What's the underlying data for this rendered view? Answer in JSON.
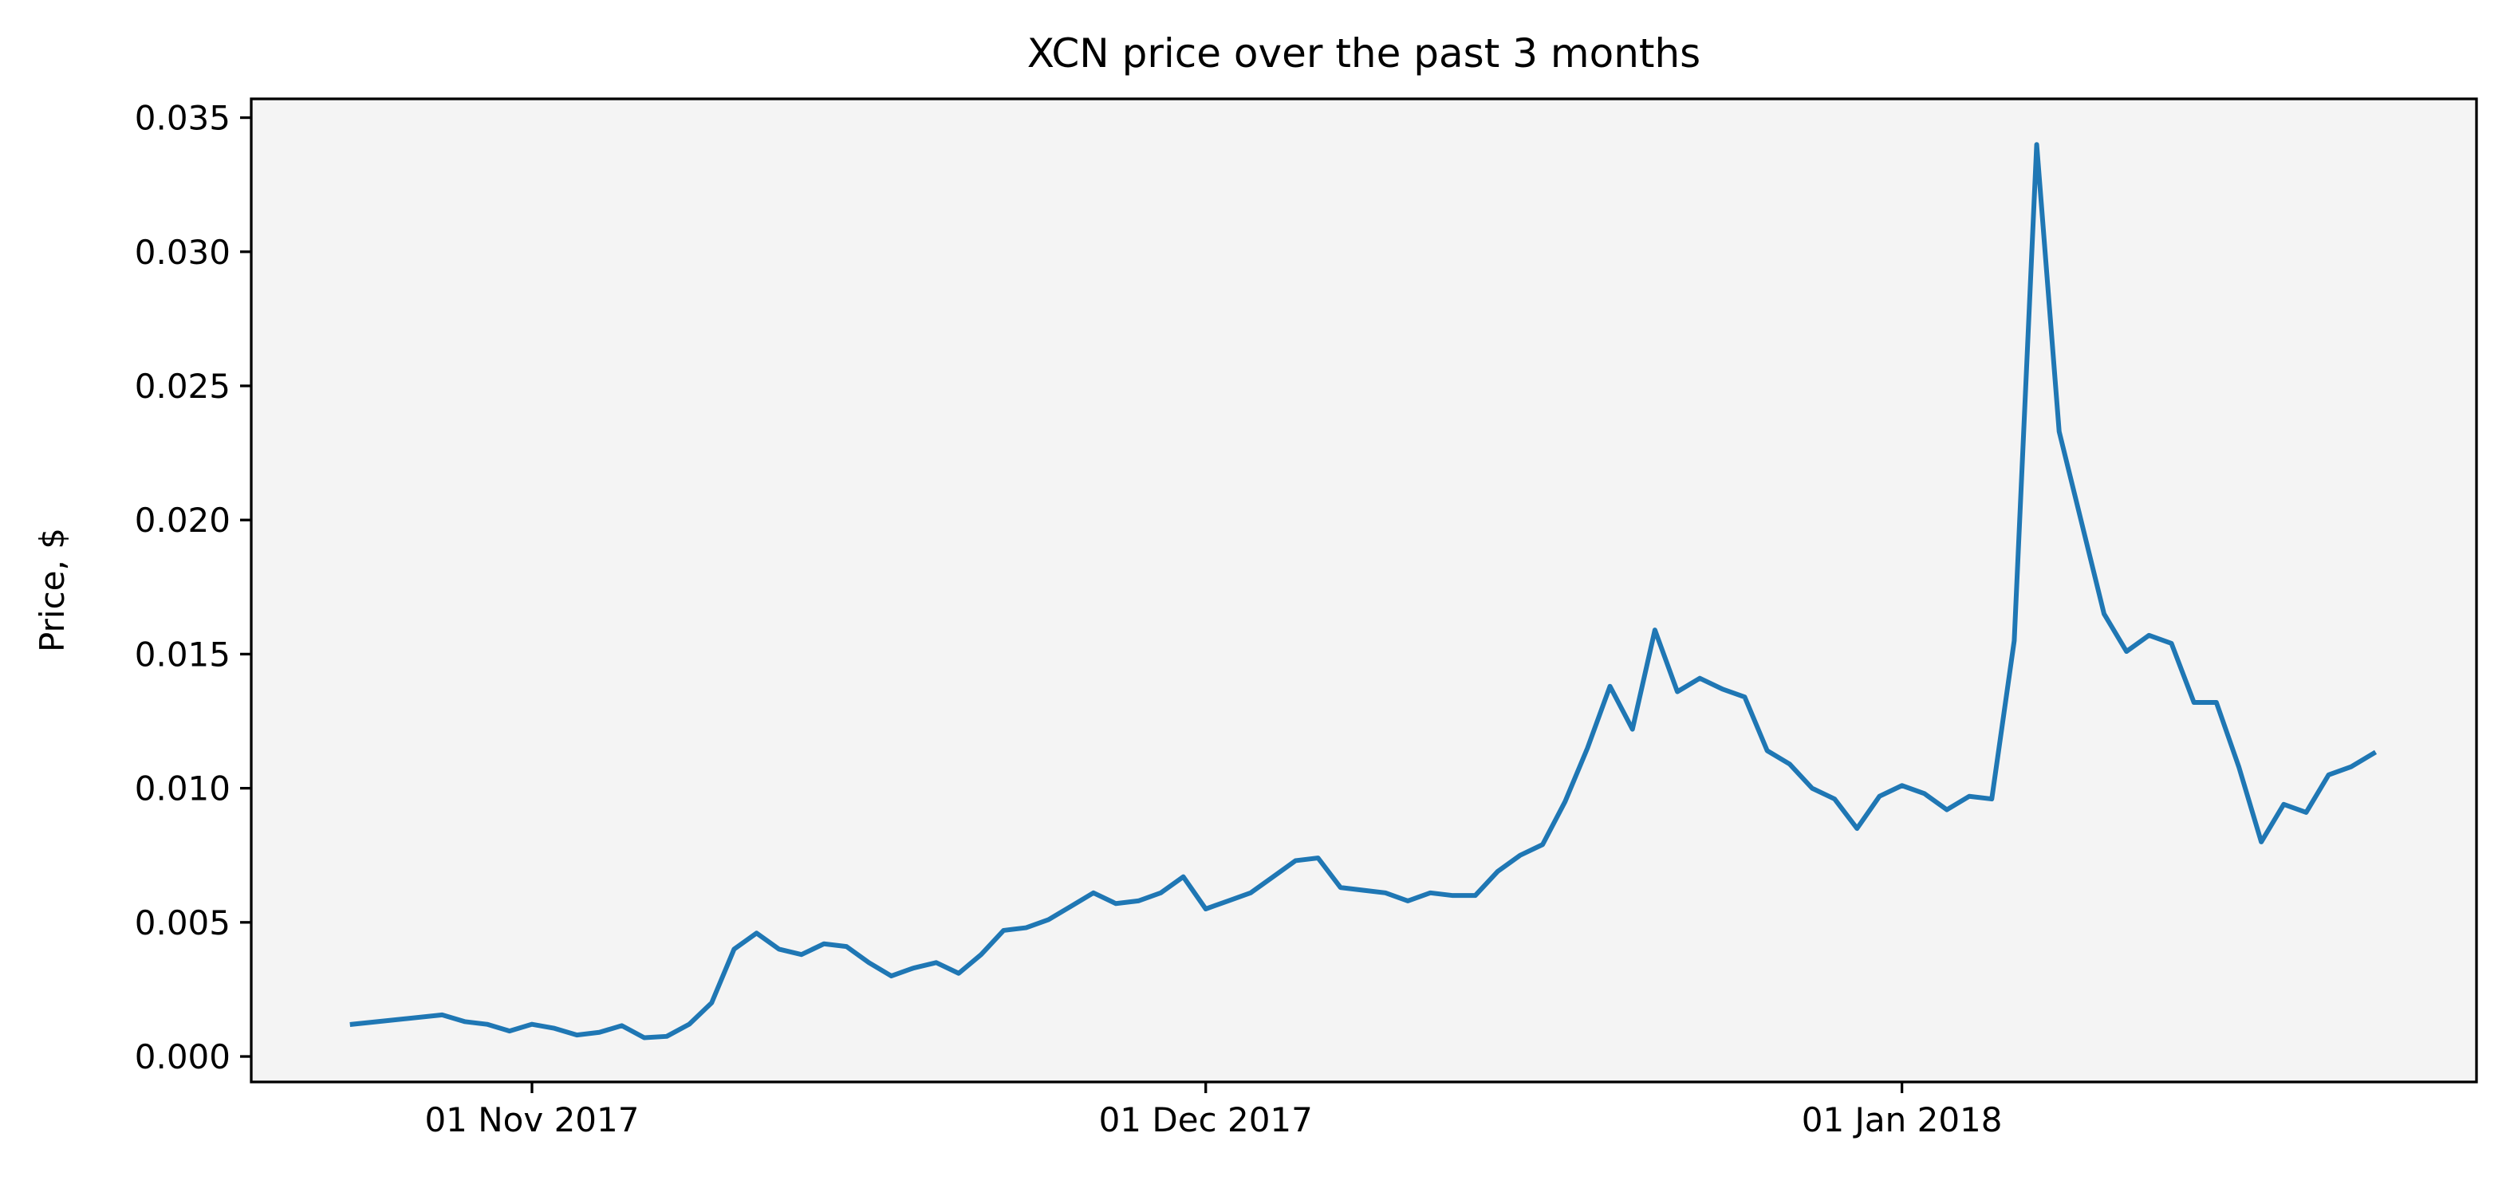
{
  "chart_data": {
    "type": "line",
    "title": "XCN price over the past 3 months",
    "ylabel": "Price, $",
    "x": [
      "2017-10-24",
      "2017-10-28",
      "2017-10-29",
      "2017-10-30",
      "2017-10-31",
      "2017-11-01",
      "2017-11-02",
      "2017-11-03",
      "2017-11-04",
      "2017-11-05",
      "2017-11-06",
      "2017-11-07",
      "2017-11-08",
      "2017-11-09",
      "2017-11-10",
      "2017-11-11",
      "2017-11-12",
      "2017-11-13",
      "2017-11-14",
      "2017-11-15",
      "2017-11-16",
      "2017-11-17",
      "2017-11-18",
      "2017-11-19",
      "2017-11-20",
      "2017-11-21",
      "2017-11-22",
      "2017-11-23",
      "2017-11-24",
      "2017-11-25",
      "2017-11-26",
      "2017-11-27",
      "2017-11-28",
      "2017-11-29",
      "2017-11-30",
      "2017-12-01",
      "2017-12-02",
      "2017-12-03",
      "2017-12-04",
      "2017-12-05",
      "2017-12-06",
      "2017-12-07",
      "2017-12-08",
      "2017-12-09",
      "2017-12-10",
      "2017-12-11",
      "2017-12-12",
      "2017-12-13",
      "2017-12-14",
      "2017-12-15",
      "2017-12-16",
      "2017-12-17",
      "2017-12-18",
      "2017-12-19",
      "2017-12-20",
      "2017-12-21",
      "2017-12-22",
      "2017-12-23",
      "2017-12-24",
      "2017-12-25",
      "2017-12-26",
      "2017-12-27",
      "2017-12-28",
      "2017-12-29",
      "2017-12-30",
      "2017-12-31",
      "2018-01-01",
      "2018-01-02",
      "2018-01-03",
      "2018-01-04",
      "2018-01-05",
      "2018-01-06",
      "2018-01-07",
      "2018-01-08",
      "2018-01-09",
      "2018-01-10",
      "2018-01-11",
      "2018-01-12",
      "2018-01-13",
      "2018-01-14",
      "2018-01-15",
      "2018-01-16",
      "2018-01-17",
      "2018-01-18",
      "2018-01-19",
      "2018-01-20",
      "2018-01-21",
      "2018-01-22"
    ],
    "values": [
      0.0012,
      0.00155,
      0.0013,
      0.0012,
      0.00095,
      0.0012,
      0.00105,
      0.0008,
      0.0009,
      0.00115,
      0.0007,
      0.00075,
      0.0012,
      0.002,
      0.004,
      0.0046,
      0.004,
      0.0038,
      0.0042,
      0.0041,
      0.0035,
      0.003,
      0.0033,
      0.0035,
      0.0031,
      0.0038,
      0.0047,
      0.0048,
      0.0051,
      0.0056,
      0.0061,
      0.0057,
      0.0058,
      0.0061,
      0.0067,
      0.0055,
      0.0058,
      0.0061,
      0.0067,
      0.0073,
      0.0074,
      0.0063,
      0.0062,
      0.0061,
      0.0058,
      0.0061,
      0.006,
      0.006,
      0.0069,
      0.0075,
      0.0079,
      0.0095,
      0.0115,
      0.0138,
      0.0122,
      0.0159,
      0.0136,
      0.0141,
      0.0137,
      0.0134,
      0.0114,
      0.0109,
      0.01,
      0.0096,
      0.0085,
      0.0097,
      0.0101,
      0.0098,
      0.0092,
      0.0097,
      0.0096,
      0.0155,
      0.034,
      0.0233,
      0.0199,
      0.0165,
      0.0151,
      0.0157,
      0.0154,
      0.0132,
      0.0132,
      0.0108,
      0.008,
      0.0094,
      0.0091,
      0.0105,
      0.0108,
      0.0113
    ],
    "color": "#1f77b4",
    "background": "#f4f4f4",
    "xlim": [
      "2017-10-19T12:00Z",
      "2018-01-26T14:00Z"
    ],
    "xticks": [
      {
        "value": "2017-11-01",
        "label": "01 Nov 2017"
      },
      {
        "value": "2017-12-01",
        "label": "01 Dec 2017"
      },
      {
        "value": "2018-01-01",
        "label": "01 Jan 2018"
      }
    ],
    "ylim": [
      -0.00095,
      0.0357
    ],
    "yticks": [
      {
        "value": 0,
        "label": "0.000"
      },
      0.005,
      {
        "value": 0.01,
        "label": "0.010"
      },
      0.015,
      {
        "value": 0.02,
        "label": "0.020"
      },
      0.025,
      {
        "value": 0.03,
        "label": "0.030"
      },
      0.035
    ],
    "grid": false
  }
}
